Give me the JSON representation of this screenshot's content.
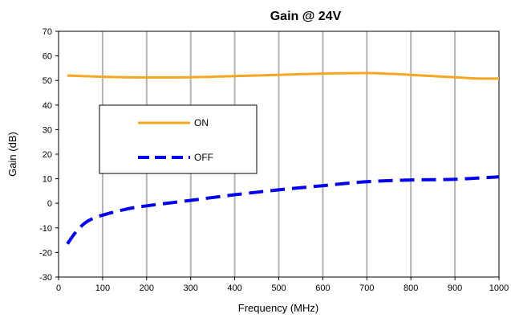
{
  "chart_data": {
    "type": "line",
    "title": "Gain @ 24V",
    "xlabel": "Frequency (MHz)",
    "ylabel": "Gain (dB)",
    "xlim": [
      0,
      1000
    ],
    "ylim": [
      -30,
      70
    ],
    "xticks": [
      0,
      100,
      200,
      300,
      400,
      500,
      600,
      700,
      800,
      900,
      1000
    ],
    "yticks": [
      -30,
      -20,
      -10,
      0,
      10,
      20,
      30,
      40,
      50,
      60,
      70
    ],
    "grid": {
      "vertical": true,
      "horizontal": false
    },
    "legend": {
      "placement": "middle-left",
      "entries": [
        "ON",
        "OFF"
      ]
    },
    "series": [
      {
        "name": "ON",
        "color": "#F5A623",
        "style": "solid",
        "x": [
          20,
          100,
          200,
          300,
          400,
          500,
          600,
          700,
          750,
          800,
          900,
          950,
          1000
        ],
        "values": [
          52,
          51.5,
          51.2,
          51.3,
          51.8,
          52.3,
          52.8,
          53,
          52.7,
          52.3,
          51.3,
          50.8,
          50.8
        ]
      },
      {
        "name": "OFF",
        "color": "#0000EE",
        "style": "dashed",
        "x": [
          20,
          40,
          60,
          80,
          100,
          150,
          200,
          300,
          400,
          500,
          600,
          700,
          800,
          900,
          1000
        ],
        "values": [
          -16.5,
          -11.5,
          -8,
          -6,
          -4.8,
          -2.5,
          -1,
          1.2,
          3.5,
          5.5,
          7.2,
          8.8,
          9.5,
          9.8,
          10.8
        ]
      }
    ]
  }
}
